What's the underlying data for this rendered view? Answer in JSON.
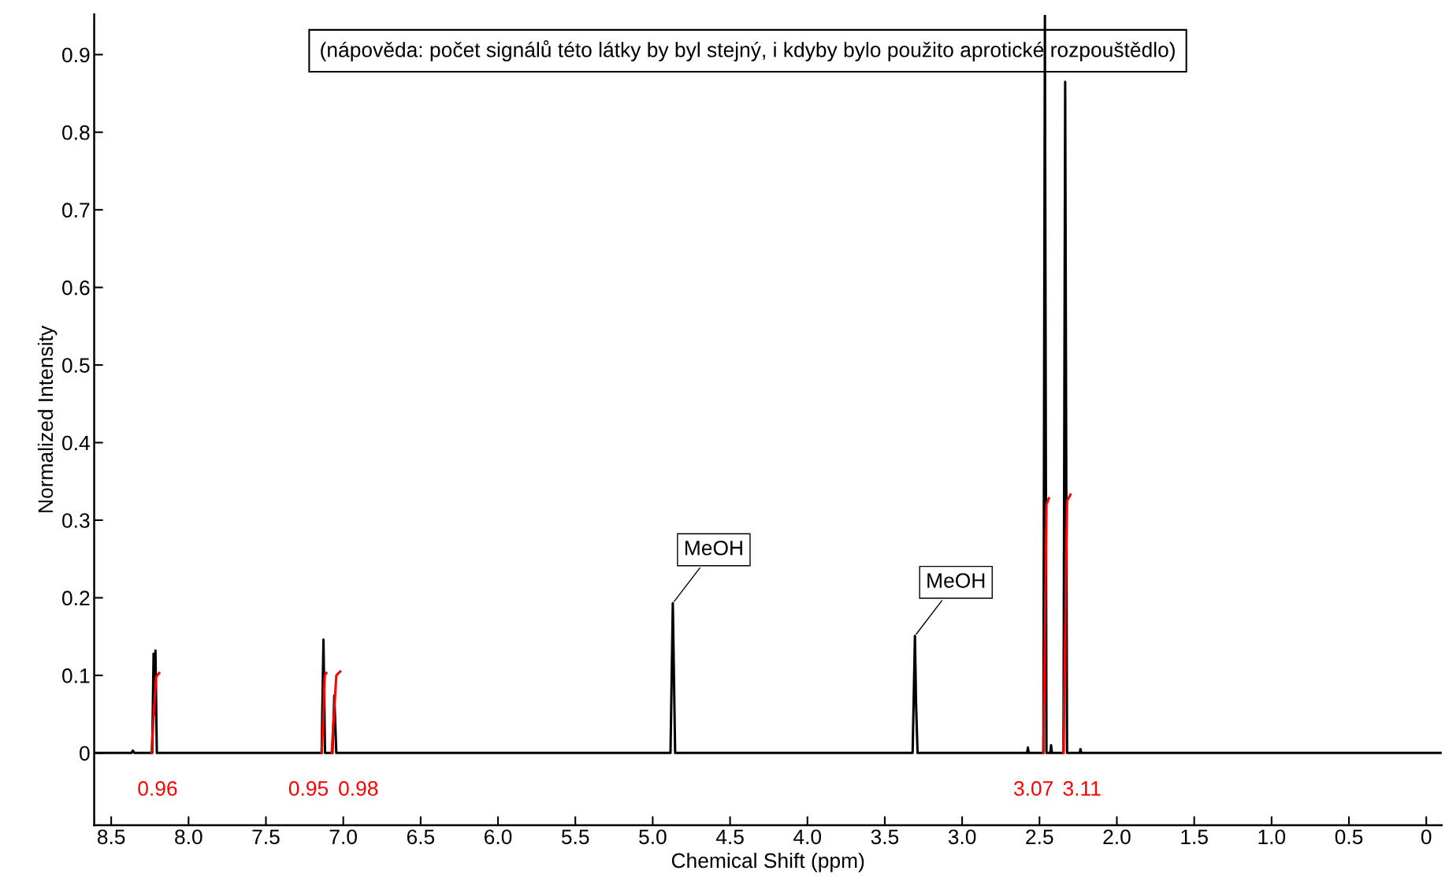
{
  "chart_data": {
    "type": "line",
    "xlabel": "Chemical Shift (ppm)",
    "ylabel": "Normalized Intensity",
    "xlim": [
      8.61,
      -0.1
    ],
    "ylim": [
      -0.093,
      0.952
    ],
    "xticks": [
      8.5,
      {
        "value": 8,
        "label": "8.0"
      },
      7.5,
      {
        "value": 7,
        "label": "7.0"
      },
      6.5,
      {
        "value": 6,
        "label": "6.0"
      },
      5.5,
      {
        "value": 5,
        "label": "5.0"
      },
      4.5,
      {
        "value": 4,
        "label": "4.0"
      },
      3.5,
      {
        "value": 3,
        "label": "3.0"
      },
      2.5,
      {
        "value": 2,
        "label": "2.0"
      },
      1.5,
      {
        "value": 1,
        "label": "1.0"
      },
      0.5,
      0
    ],
    "yticks": [
      0,
      0.1,
      0.2,
      0.3,
      0.4,
      0.5,
      0.6,
      0.7,
      0.8,
      0.9
    ],
    "grid": false,
    "legend": false,
    "marker": "none",
    "line_style": "solid",
    "series": [
      {
        "color": "#000000",
        "x": [
          8.61,
          8.37,
          8.36,
          8.35,
          8.235,
          8.226,
          8.219,
          8.214,
          8.205,
          7.14,
          7.128,
          7.118,
          7.07,
          7.058,
          7.045,
          4.885,
          4.87,
          4.855,
          3.32,
          3.305,
          3.298,
          3.288,
          2.58,
          2.575,
          2.57,
          2.475,
          2.465,
          2.455,
          2.43,
          2.425,
          2.42,
          2.345,
          2.334,
          2.322,
          2.24,
          2.235,
          2.23,
          -0.1
        ],
        "values": [
          0,
          0,
          0.003,
          0,
          0,
          0.128,
          0.05,
          0.132,
          0,
          0,
          0.146,
          0,
          0,
          0.074,
          0,
          0,
          0.193,
          0,
          0,
          0.151,
          0.065,
          0,
          0,
          0.007,
          0,
          0,
          0.95,
          0,
          0,
          0.01,
          0,
          0,
          0.865,
          0,
          0,
          0.005,
          0,
          0
        ]
      },
      {
        "color": "#ff0000",
        "x": [
          8.24,
          8.225,
          8.21,
          8.19,
          8.0,
          7.14,
          7.128,
          7.12,
          7.11,
          7.09,
          7.075,
          7.06,
          7.045,
          7.02,
          6.9,
          2.475,
          2.465,
          2.455,
          2.44,
          2.4,
          2.345,
          2.334,
          2.322,
          2.3
        ],
        "values": [
          0,
          0.05,
          0.098,
          0.103,
          null,
          0,
          0.05,
          0.1,
          0.103,
          null,
          0,
          0.05,
          0.1,
          0.105,
          null,
          0,
          0.15,
          0.32,
          0.328,
          null,
          0,
          0.15,
          0.325,
          0.333
        ]
      }
    ],
    "annotations": [
      "(nápověda: počet signálů této látky by byl stejný, i kdyby bylo použito aprotické rozpouštědlo)",
      {
        "text": "MeOH",
        "x": 4.87,
        "y": 0.193
      },
      {
        "text": "MeOH",
        "x": 3.305,
        "y": 0.151
      },
      "0.96",
      "0.95",
      "0.98",
      "3.07",
      "3.11"
    ]
  }
}
